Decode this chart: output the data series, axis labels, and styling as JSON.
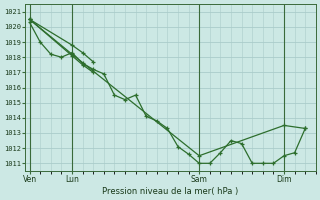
{
  "background_color": "#cce8e4",
  "grid_color": "#aaccca",
  "line_color": "#2d6e2d",
  "marker_color": "#2d6e2d",
  "xlabel": "Pression niveau de la mer( hPa )",
  "ylim": [
    1010.5,
    1021.5
  ],
  "yticks": [
    1011,
    1012,
    1013,
    1014,
    1015,
    1016,
    1017,
    1018,
    1019,
    1020,
    1021
  ],
  "xtick_labels": [
    "Ven",
    "Lun",
    "Sam",
    "Dim"
  ],
  "xtick_positions": [
    0,
    2,
    8,
    12
  ],
  "xlim": [
    -0.2,
    13.5
  ],
  "vline_positions": [
    0,
    2,
    8,
    12
  ],
  "series": [
    {
      "x": [
        0,
        0.5,
        1.0,
        1.5,
        2.0,
        2.5,
        3.0,
        3.5,
        4.0,
        4.5,
        5.0,
        5.5,
        6.0,
        6.5,
        7.0,
        7.5,
        8.0,
        8.5,
        9.0,
        9.5,
        10.0,
        10.5,
        11.0,
        11.5,
        12.0,
        12.5,
        13.0
      ],
      "y": [
        1020.3,
        1019.0,
        1018.2,
        1018.0,
        1018.3,
        1017.6,
        1017.2,
        1016.9,
        1015.5,
        1015.2,
        1015.5,
        1014.1,
        1013.8,
        1013.3,
        1012.1,
        1011.6,
        1011.0,
        1011.0,
        1011.7,
        1012.5,
        1012.3,
        1011.0,
        1011.0,
        1011.0,
        1011.5,
        1011.7,
        1013.3
      ]
    },
    {
      "x": [
        0,
        2,
        8,
        12,
        13.0
      ],
      "y": [
        1020.5,
        1018.2,
        1011.5,
        1013.5,
        1013.3
      ]
    },
    {
      "x": [
        0,
        2,
        2.5,
        3.0
      ],
      "y": [
        1020.5,
        1018.8,
        1018.3,
        1017.7
      ]
    },
    {
      "x": [
        0,
        2,
        2.5,
        3.0
      ],
      "y": [
        1020.5,
        1018.1,
        1017.5,
        1017.0
      ]
    }
  ]
}
